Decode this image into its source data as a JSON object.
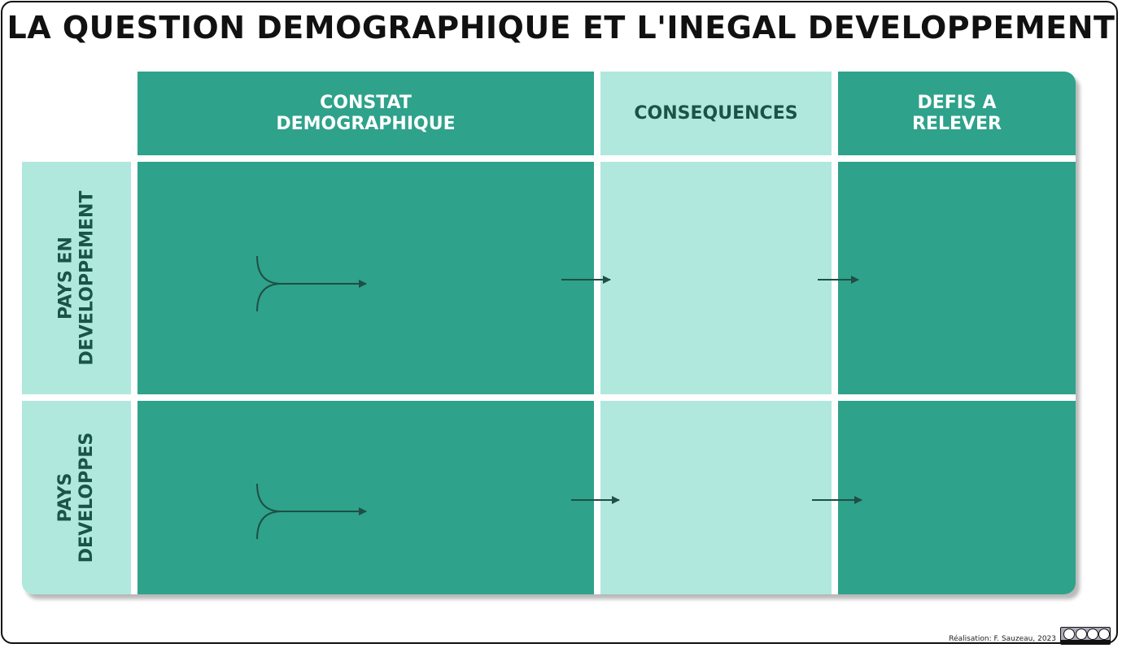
{
  "title": "LA QUESTION DEMOGRAPHIQUE ET L'INEGAL DEVELOPPEMENT",
  "columns": [
    {
      "line1": "CONSTAT",
      "line2": "DEMOGRAPHIQUE"
    },
    {
      "line1": "CONSEQUENCES",
      "line2": ""
    },
    {
      "line1": "DEFIS A",
      "line2": "RELEVER"
    }
  ],
  "rows": [
    {
      "line1": "PAYS EN",
      "line2": "DEVELOPPEMENT"
    },
    {
      "line1": "PAYS",
      "line2": "DEVELOPPES"
    }
  ],
  "credit": "Réalisation: F. Sauzeau, 2023",
  "license_icon": "cc-by-nc-sa-badge",
  "colors": {
    "dark_teal": "#2ea28b",
    "light_teal": "#b0e8de",
    "text_dark": "#1a5446",
    "arrow": "#1f4f45"
  }
}
